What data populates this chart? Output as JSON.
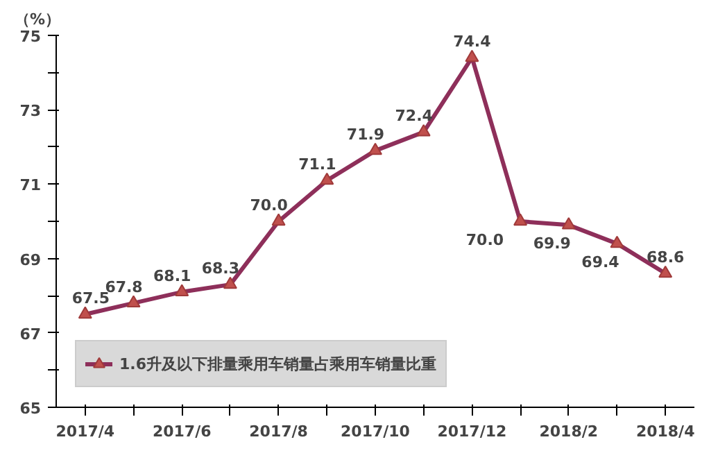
{
  "chart_data": {
    "type": "line",
    "ylabel": "（%）",
    "categories": [
      "2017/4",
      null,
      "2017/6",
      null,
      "2017/8",
      null,
      "2017/10",
      null,
      "2017/12",
      null,
      "2018/2",
      null,
      "2018/4"
    ],
    "series": [
      {
        "name": "1.6升及以下排量乘用车销量占乘用车销量比重",
        "color": "#8e2f5a",
        "values": [
          67.5,
          67.8,
          68.1,
          68.3,
          70.0,
          71.1,
          71.9,
          72.4,
          74.4,
          70.0,
          69.9,
          69.4,
          68.6
        ]
      }
    ],
    "ylim": [
      65,
      75
    ],
    "yticks": [
      65,
      {
        "value": 66,
        "label": null
      },
      67,
      {
        "value": 68,
        "label": null
      },
      69,
      {
        "value": 70,
        "label": null
      },
      71,
      {
        "value": 72,
        "label": null
      },
      73,
      {
        "value": 74,
        "label": null
      },
      75
    ],
    "value_labels": [
      "67.5",
      "67.8",
      "68.1",
      "68.3",
      "70.0",
      "71.1",
      "71.9",
      "72.4",
      "74.4",
      "70.0",
      "69.9",
      "69.4",
      "68.6"
    ],
    "grid": false,
    "legend": "bottom left",
    "marker": "triangle",
    "line_style": "solid"
  }
}
